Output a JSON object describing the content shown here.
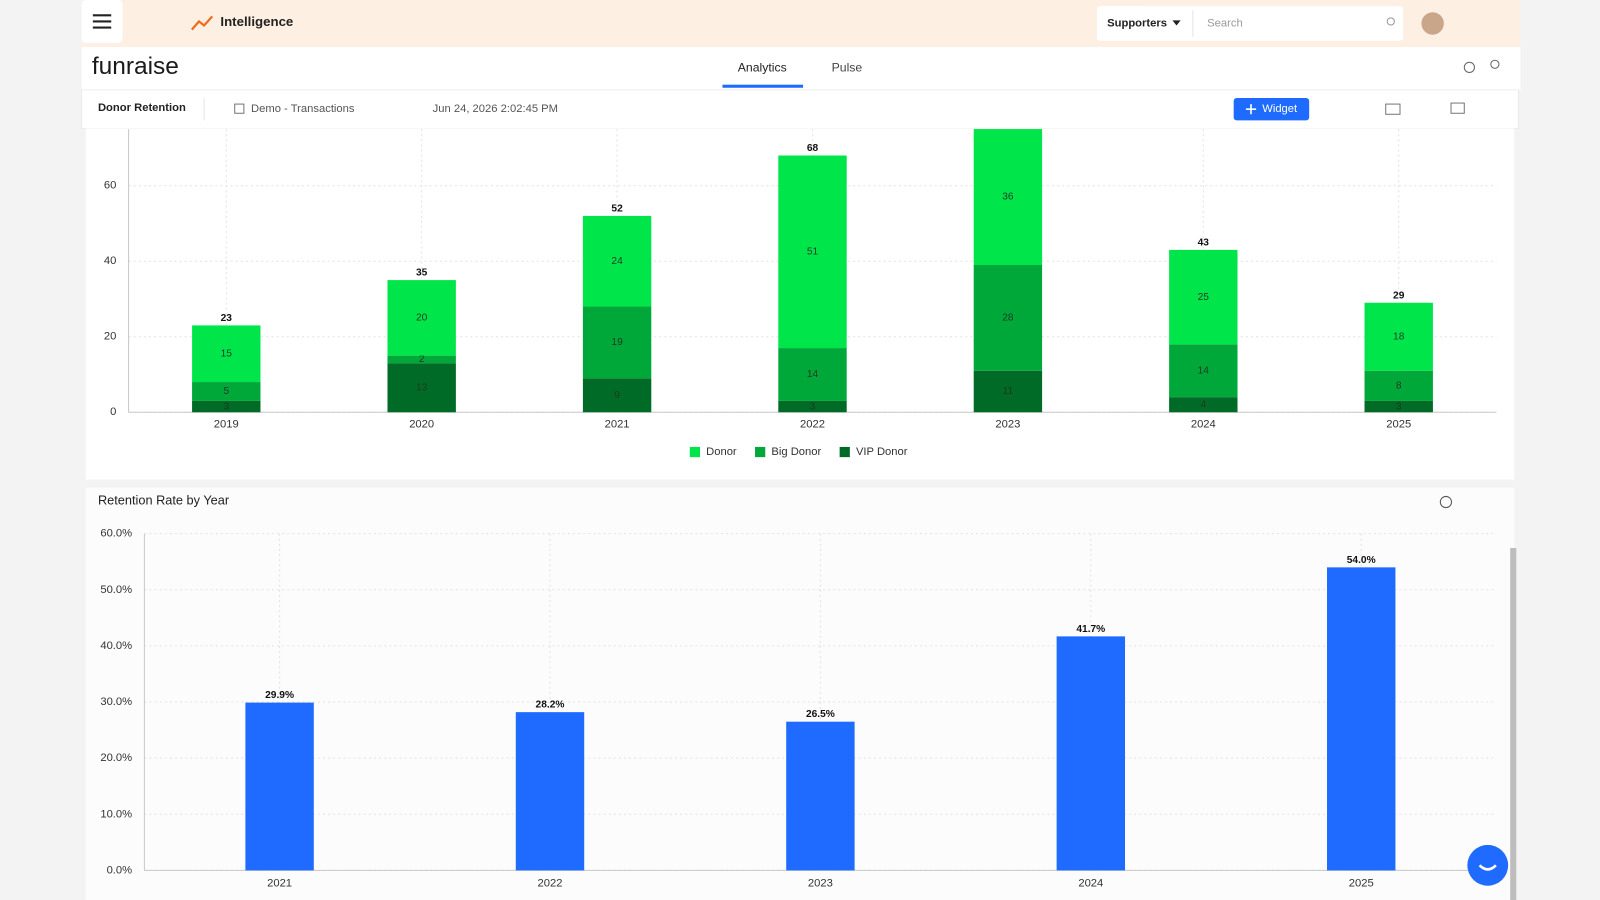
{
  "header": {
    "app": "Intelligence",
    "filter": "Supporters",
    "search_placeholder": "Search"
  },
  "brand": "funraise",
  "tabs": [
    "Analytics",
    "Pulse"
  ],
  "toolbar": {
    "dashboard": "Donor Retention",
    "source": "Demo - Transactions",
    "timestamp": "Jun 24, 2026 2:02:45 PM",
    "add_widget": "Widget"
  },
  "chart_data": [
    {
      "type": "bar",
      "stacked": true,
      "categories": [
        "2019",
        "2020",
        "2021",
        "2022",
        "2023",
        "2024",
        "2025"
      ],
      "series": [
        {
          "name": "VIP Donor",
          "color": "#006b26",
          "values": [
            3,
            13,
            9,
            3,
            11,
            4,
            3
          ]
        },
        {
          "name": "Big Donor",
          "color": "#00a83a",
          "values": [
            5,
            2,
            19,
            14,
            28,
            14,
            8
          ]
        },
        {
          "name": "Donor",
          "color": "#00e64a",
          "values": [
            15,
            20,
            24,
            51,
            36,
            25,
            18
          ]
        }
      ],
      "totals": [
        23,
        35,
        52,
        68,
        null,
        43,
        29
      ],
      "legend_order": [
        "Donor",
        "Big Donor",
        "VIP Donor"
      ],
      "ylim": [
        0,
        75
      ],
      "yticks": [
        0,
        20,
        40,
        60
      ],
      "grid": true
    },
    {
      "type": "bar",
      "title": "Retention Rate by Year",
      "categories": [
        "2021",
        "2022",
        "2023",
        "2024",
        "2025"
      ],
      "values": [
        29.9,
        28.2,
        26.5,
        41.7,
        54.0
      ],
      "value_labels": [
        "29.9%",
        "28.2%",
        "26.5%",
        "41.7%",
        "54.0%"
      ],
      "color": "#1f6bff",
      "ylim": [
        0,
        60
      ],
      "yticks": [
        {
          "value": 0,
          "label": "0.0%"
        },
        {
          "value": 10,
          "label": "10.0%"
        },
        {
          "value": 20,
          "label": "20.0%"
        },
        {
          "value": 30,
          "label": "30.0%"
        },
        {
          "value": 40,
          "label": "40.0%"
        },
        {
          "value": 50,
          "label": "50.0%"
        },
        {
          "value": 60,
          "label": "60.0%"
        }
      ],
      "grid": true
    }
  ]
}
